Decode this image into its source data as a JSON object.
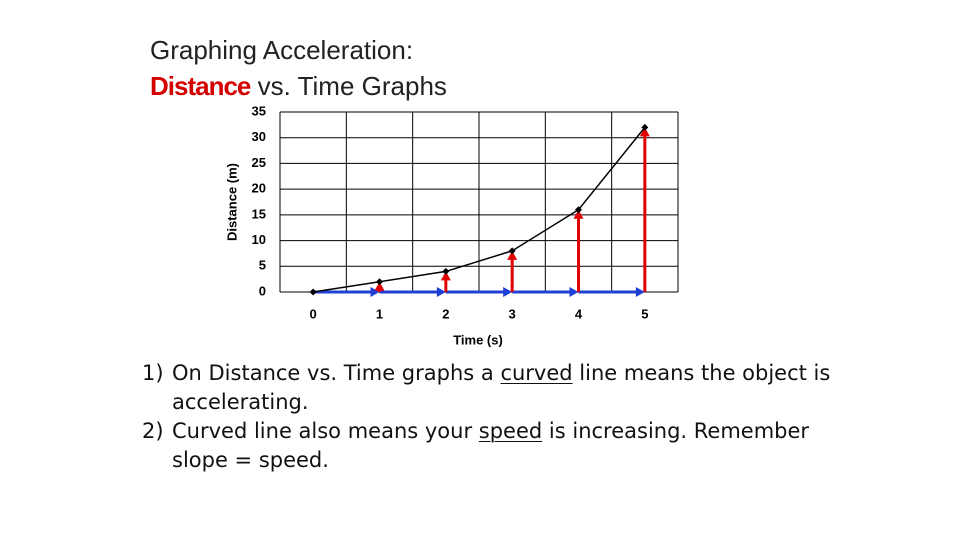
{
  "slide": {
    "title_line1": "Graphing Acceleration:",
    "title_highlight": "Distance",
    "title_rest": "vs. Time Graphs",
    "points": [
      {
        "marker": "1)",
        "before": "On Distance vs. Time graphs a ",
        "underlined": "curved",
        "after": " line means the object is accelerating."
      },
      {
        "marker": "2)",
        "before": "Curved line also means your ",
        "underlined": "speed",
        "after": " is increasing. Remember slope = speed."
      }
    ]
  },
  "chart_data": {
    "type": "line",
    "x_label": "Time (s)",
    "y_label": "Distance (m)",
    "categories": [
      "0",
      "1",
      "2",
      "3",
      "4",
      "5"
    ],
    "values": [
      0,
      2,
      4,
      8,
      16,
      32
    ],
    "color": "#000000",
    "rise_color": "#e00000",
    "run_color": "#1f3fd6",
    "ylim": [
      0,
      35
    ],
    "yticks": [
      0,
      5,
      10,
      15,
      20,
      25,
      30,
      35
    ],
    "grid": true
  }
}
